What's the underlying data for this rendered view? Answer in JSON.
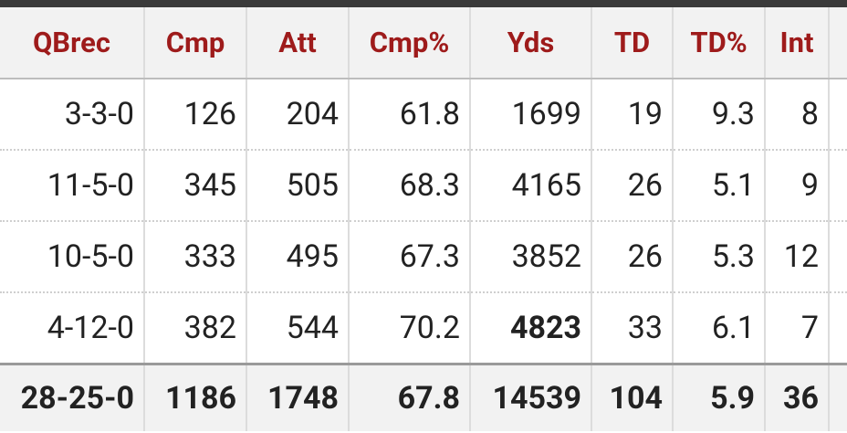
{
  "table": {
    "headers": [
      "QBrec",
      "Cmp",
      "Att",
      "Cmp%",
      "Yds",
      "TD",
      "TD%",
      "Int"
    ],
    "rows": [
      [
        "3-3-0",
        126,
        204,
        61.8,
        1699,
        19,
        9.3,
        8
      ],
      [
        "11-5-0",
        345,
        505,
        68.3,
        4165,
        26,
        5.1,
        9
      ],
      [
        "10-5-0",
        333,
        495,
        67.3,
        3852,
        26,
        5.3,
        12
      ],
      [
        "4-12-0",
        382,
        544,
        70.2,
        4823,
        33,
        6.1,
        7
      ]
    ],
    "totals": [
      "28-25-0",
      1186,
      1748,
      67.8,
      14539,
      104,
      5.9,
      36
    ]
  }
}
